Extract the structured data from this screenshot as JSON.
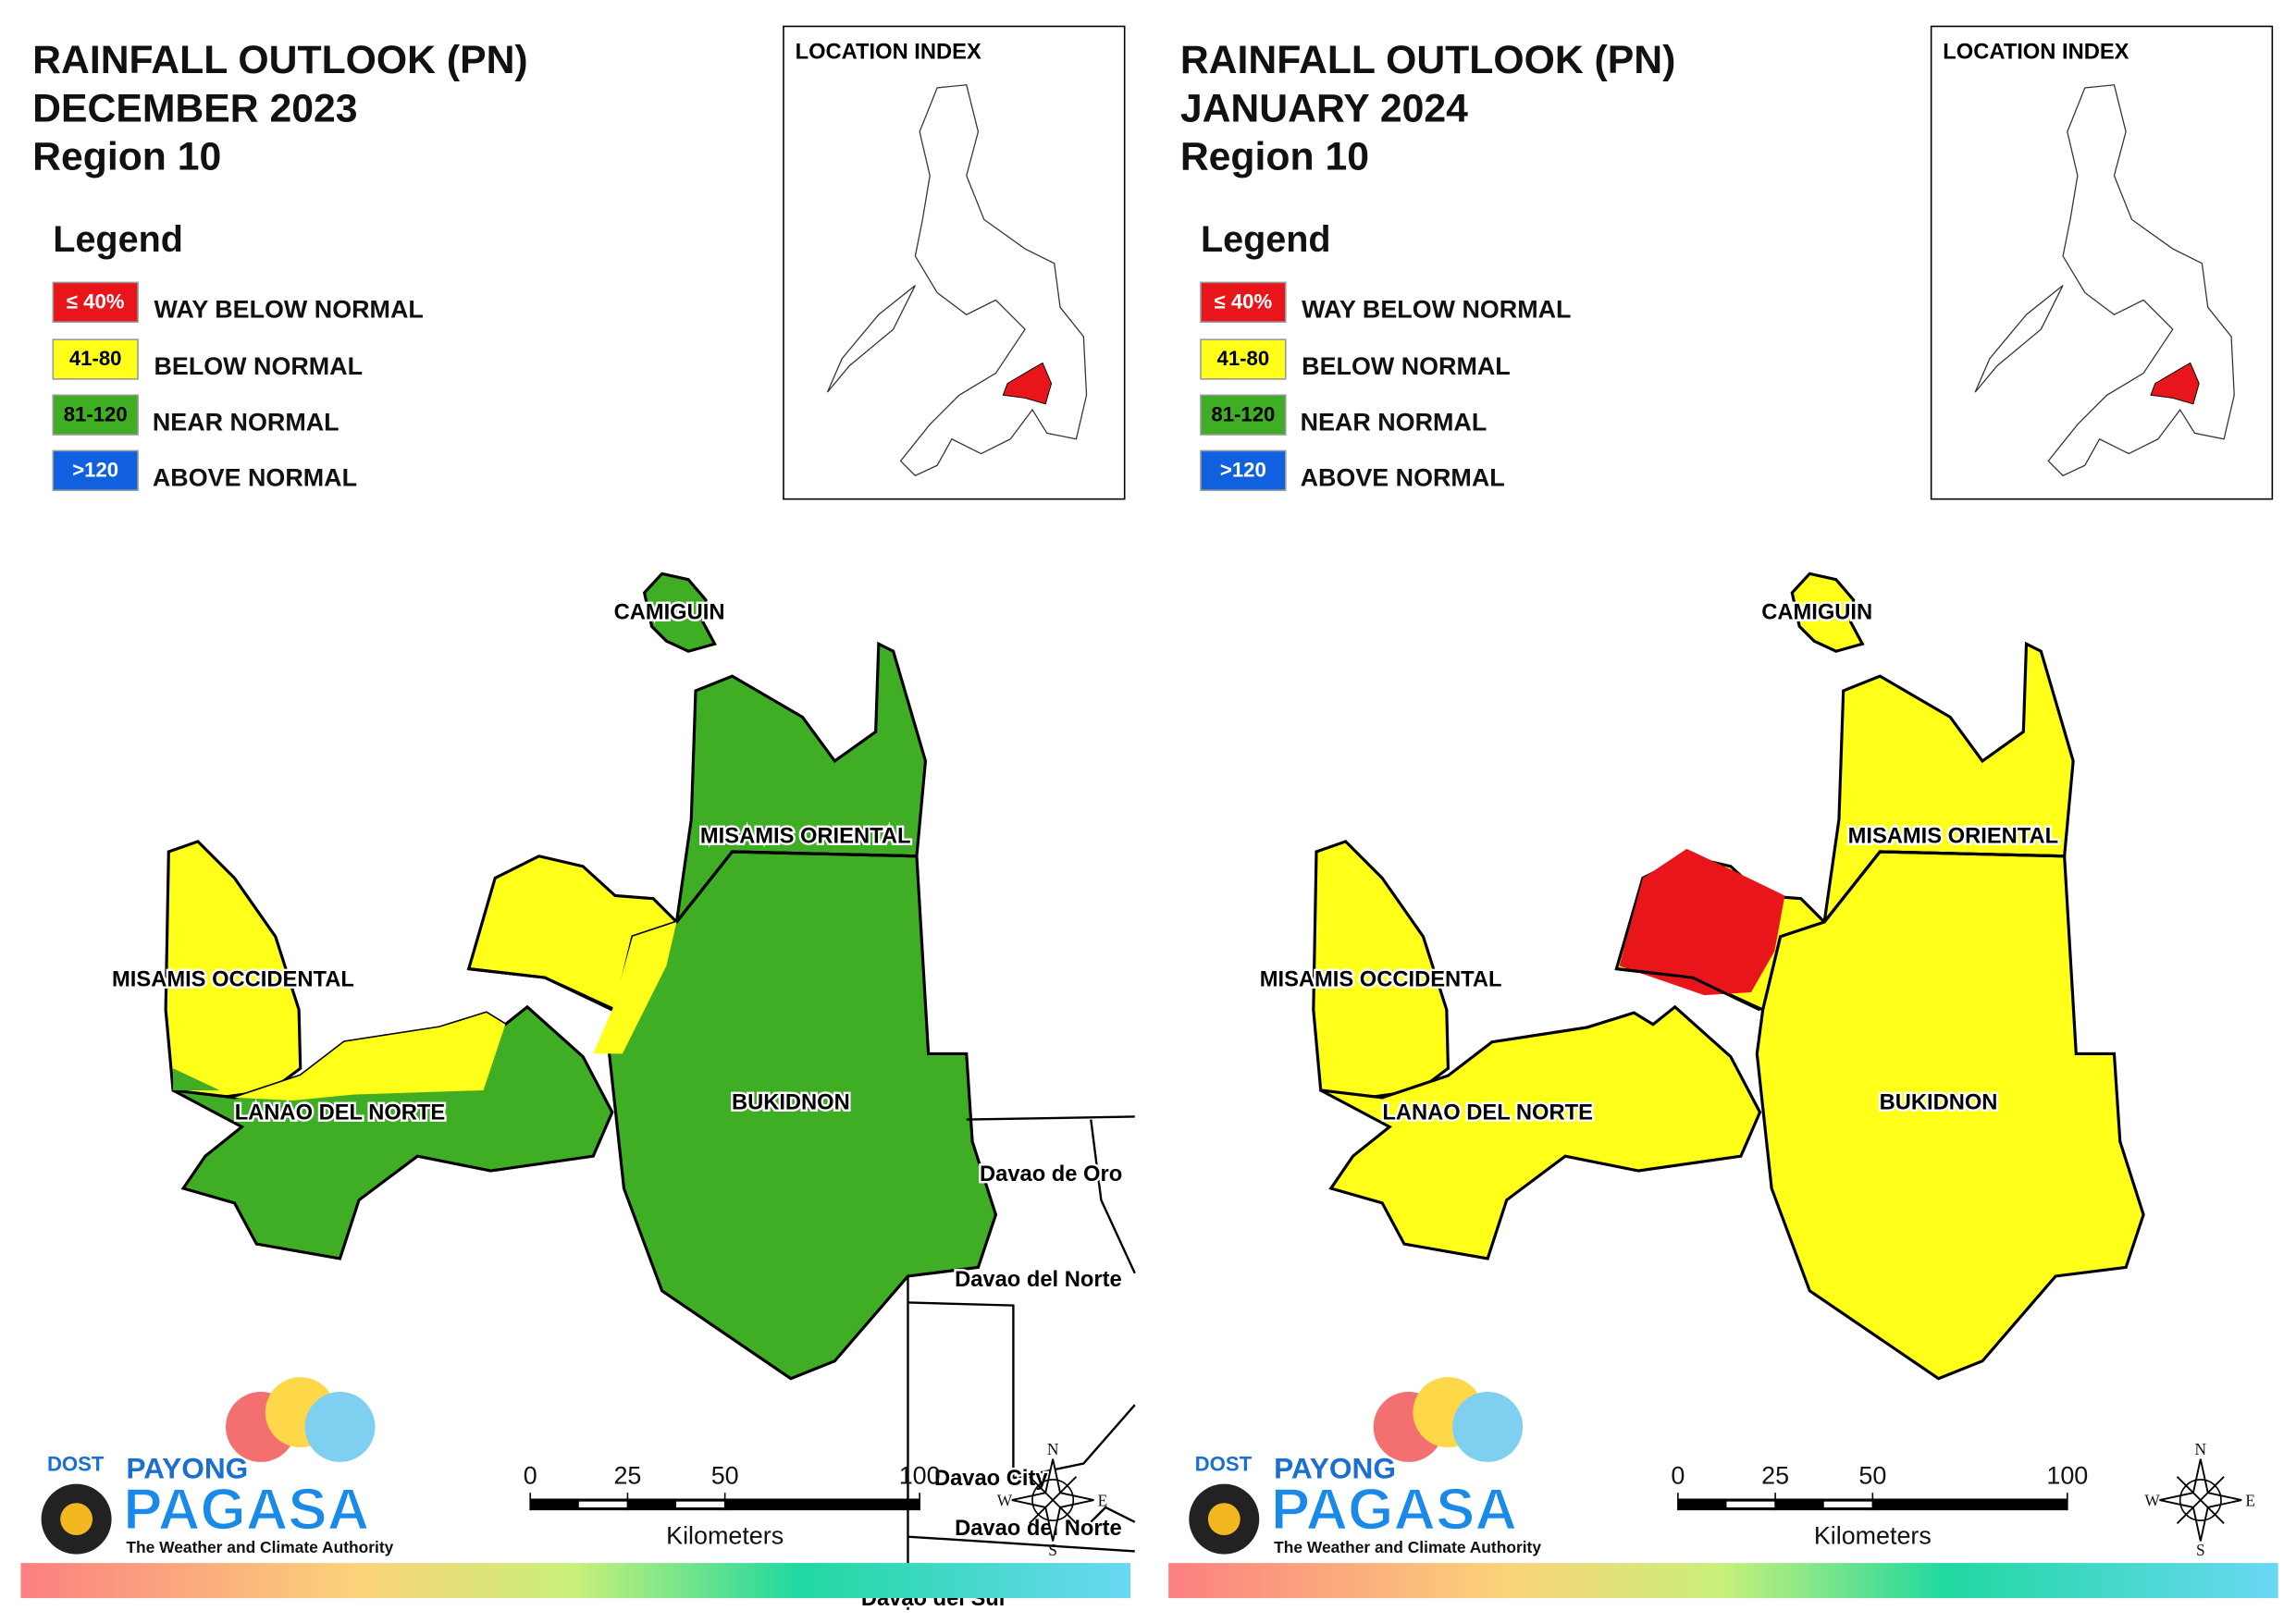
{
  "panels": [
    {
      "title": [
        "RAINFALL OUTLOOK (PN)",
        "DECEMBER 2023",
        "Region 10"
      ],
      "legend": {
        "title": "Legend",
        "items": [
          {
            "range": "≤ 40%",
            "label": "WAY BELOW NORMAL",
            "color": "#e8161b"
          },
          {
            "range": "41-80",
            "label": "BELOW NORMAL",
            "color": "#ffff1a"
          },
          {
            "range": "81-120",
            "label": "NEAR NORMAL",
            "color": "#3fae25"
          },
          {
            "range": ">120",
            "label": "ABOVE NORMAL",
            "color": "#1060e0"
          }
        ]
      },
      "location_index": "LOCATION INDEX",
      "provinces": [
        "CAMIGUIN",
        "MISAMIS ORIENTAL",
        "MISAMIS OCCIDENTAL",
        "BUKIDNON",
        "LANAO DEL NORTE"
      ],
      "neighbors": [
        "Davao de Oro",
        "Davao del Norte",
        "Davao City",
        "Davao del Norte",
        "Davao del Sur"
      ],
      "scale": {
        "ticks": [
          0,
          25,
          50,
          100
        ],
        "unit": "Kilometers"
      },
      "compass": [
        "N",
        "E",
        "S",
        "W"
      ],
      "logo": {
        "agency": "DOST",
        "brand_top": "PAYONG",
        "brand": "PAGASA",
        "tagline": "The Weather and Climate Authority"
      }
    },
    {
      "title": [
        "RAINFALL OUTLOOK (PN)",
        "JANUARY 2024",
        "Region 10"
      ],
      "legend": {
        "title": "Legend",
        "items": [
          {
            "range": "≤ 40%",
            "label": "WAY BELOW NORMAL",
            "color": "#e8161b"
          },
          {
            "range": "41-80",
            "label": "BELOW NORMAL",
            "color": "#ffff1a"
          },
          {
            "range": "81-120",
            "label": "NEAR NORMAL",
            "color": "#3fae25"
          },
          {
            "range": ">120",
            "label": "ABOVE NORMAL",
            "color": "#1060e0"
          }
        ]
      },
      "location_index": "LOCATION INDEX",
      "provinces": [
        "CAMIGUIN",
        "MISAMIS ORIENTAL",
        "MISAMIS OCCIDENTAL",
        "BUKIDNON",
        "LANAO DEL NORTE"
      ],
      "neighbors": [],
      "scale": {
        "ticks": [
          0,
          25,
          50,
          100
        ],
        "unit": "Kilometers"
      },
      "compass": [
        "N",
        "E",
        "S",
        "W"
      ],
      "logo": {
        "agency": "DOST",
        "brand_top": "PAYONG",
        "brand": "PAGASA",
        "tagline": "The Weather and Climate Authority"
      }
    }
  ]
}
